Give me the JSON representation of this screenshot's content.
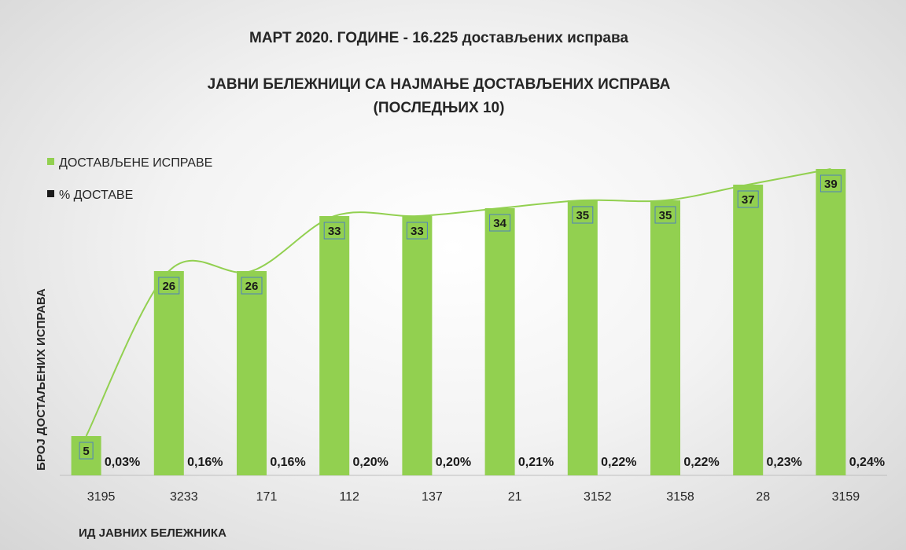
{
  "chart_data": {
    "type": "bar",
    "title": "МАРТ 2020. ГОДИНЕ - 16.225 достављених исправа",
    "subtitle_line1": "ЈАВНИ БЕЛЕЖНИЦИ СА НАЈМАЊЕ ДОСТАВЉЕНИХ ИСПРАВА",
    "subtitle_line2": "(ПОСЛЕДЊИХ 10)",
    "xlabel": "ИД ЈАВНИХ БЕЛЕЖНИКА",
    "ylabel": "БРОЈ ДОСТАЉЕНИХ ИСПРАВА",
    "categories": [
      "3195",
      "3233",
      "171",
      "112",
      "137",
      "21",
      "3152",
      "3158",
      "28",
      "3159"
    ],
    "series": [
      {
        "name": "ДОСТАВЉЕНЕ ИСПРАВЕ",
        "values": [
          5,
          26,
          26,
          33,
          33,
          34,
          35,
          35,
          37,
          39
        ],
        "labels": [
          "5",
          "26",
          "26",
          "33",
          "33",
          "34",
          "35",
          "35",
          "37",
          "39"
        ],
        "color": "#92d050"
      },
      {
        "name": "% ДОСТАВЕ",
        "values": [
          0.03,
          0.16,
          0.16,
          0.2,
          0.2,
          0.21,
          0.22,
          0.22,
          0.23,
          0.24
        ],
        "labels": [
          "0,03%",
          "0,16%",
          "0,16%",
          "0,20%",
          "0,20%",
          "0,21%",
          "0,22%",
          "0,22%",
          "0,23%",
          "0,24%"
        ],
        "color": "#1a1a1a"
      }
    ],
    "trendline": {
      "type": "polynomial",
      "color": "#92d050"
    },
    "ylim": [
      0,
      40
    ],
    "legend_position": "top-left",
    "grid": false
  }
}
